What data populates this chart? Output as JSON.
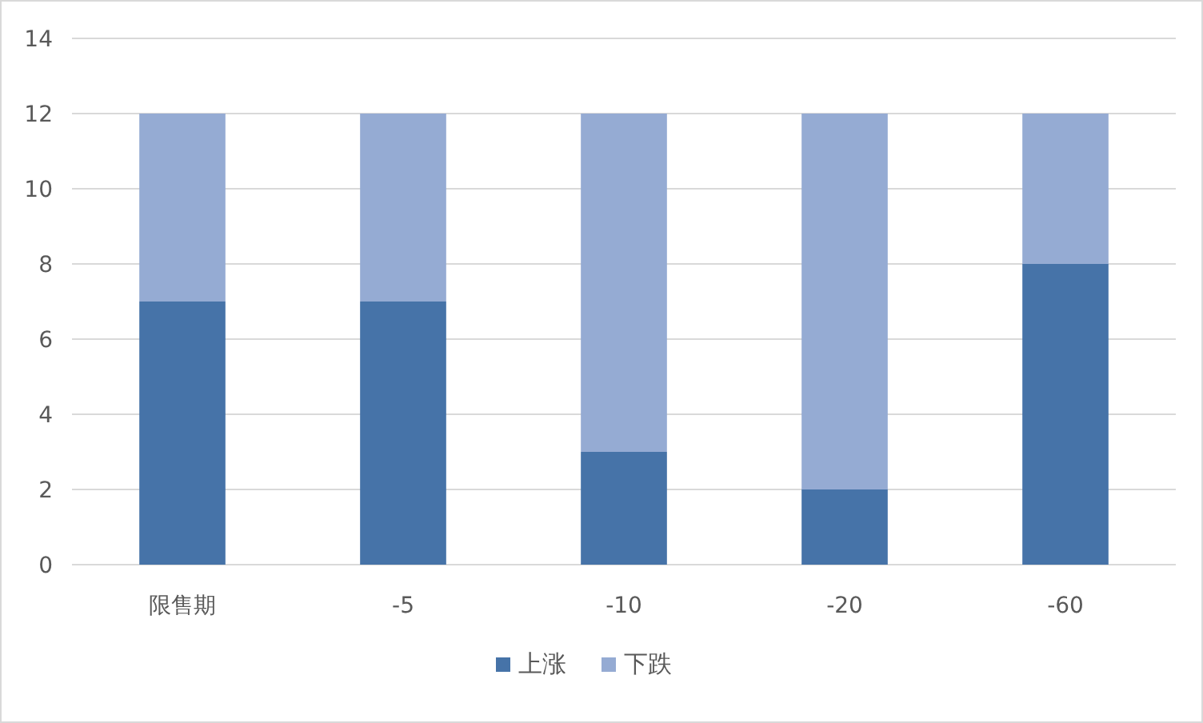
{
  "chart_data": {
    "type": "bar",
    "stacked": true,
    "categories": [
      "限售期",
      "-5",
      "-10",
      "-20",
      "-60"
    ],
    "series": [
      {
        "name": "上涨",
        "color": "#4673a8",
        "values": [
          7,
          7,
          3,
          2,
          8
        ]
      },
      {
        "name": "下跌",
        "color": "#95abd3",
        "values": [
          5,
          5,
          9,
          10,
          4
        ]
      }
    ],
    "ylim": [
      0,
      14
    ],
    "yticks": [
      0,
      2,
      4,
      6,
      8,
      10,
      12,
      14
    ],
    "grid": "y",
    "legend": "bottom"
  }
}
